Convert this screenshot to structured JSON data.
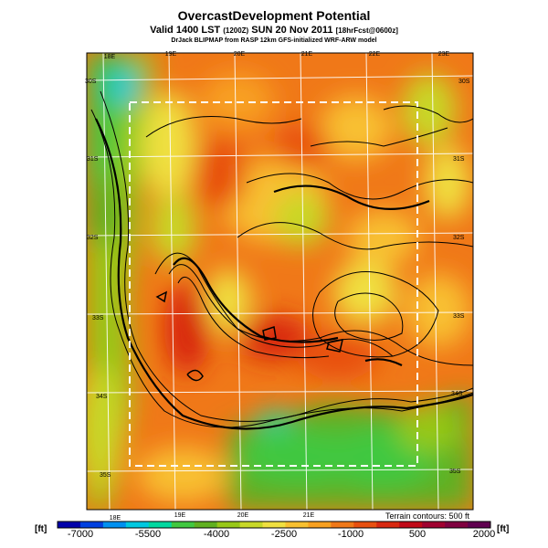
{
  "header": {
    "title": "OvercastDevelopment Potential",
    "valid_prefix": "Valid 1400 LST",
    "valid_utc": "(1200Z)",
    "valid_date": "SUN 20 Nov 2011",
    "forecast_tag": "[18hrFcst@0600z]",
    "credit": "DrJack BLIPMAP from RASP 12km GFS-initialized WRF-ARW model"
  },
  "map": {
    "top_lon_labels": [
      "18E",
      "19E",
      "20E",
      "21E",
      "22E",
      "23E"
    ],
    "bottom_lon_labels": [
      "18E",
      "19E",
      "20E",
      "21E"
    ],
    "left_lat_labels": [
      "30S",
      "31S",
      "32S",
      "33S",
      "34S",
      "35S"
    ],
    "right_lat_labels": [
      "30S",
      "31S",
      "32S",
      "33S",
      "34S",
      "35S"
    ],
    "terrain_note": "Terrain contours: 500 ft"
  },
  "colorbar": {
    "unit": "[ft]",
    "labels": [
      "-7000",
      "-5500",
      "-4000",
      "-2500",
      "-1000",
      "500",
      "2000"
    ],
    "colors": [
      "#0000aa",
      "#0040e0",
      "#0090f0",
      "#00c8e0",
      "#00d8a0",
      "#40c840",
      "#60b020",
      "#98c818",
      "#c8d828",
      "#f0e040",
      "#f8c030",
      "#f8a020",
      "#f07818",
      "#e85010",
      "#d82810",
      "#c00818",
      "#a00030",
      "#800040",
      "#600050"
    ]
  }
}
